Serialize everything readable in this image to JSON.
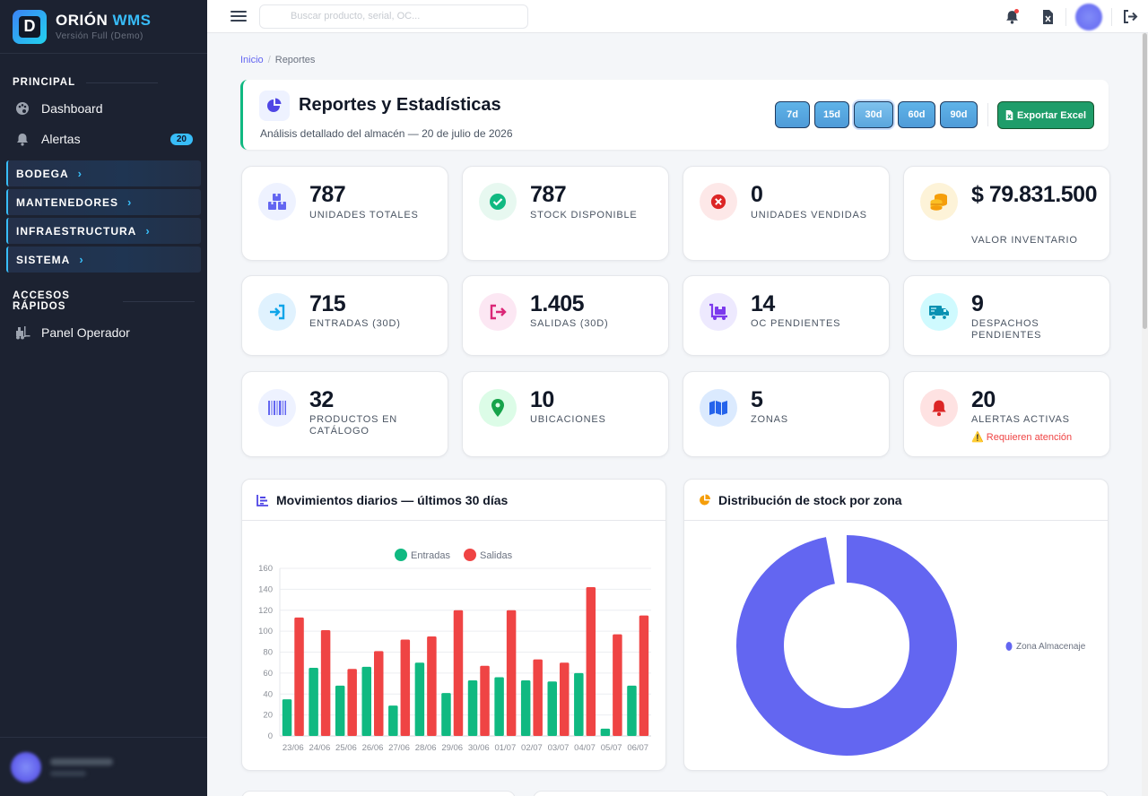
{
  "brand": {
    "letter": "D",
    "name": "ORIÓN",
    "name_accent": "WMS",
    "subtitle": "Versión Full (Demo)"
  },
  "sidebar": {
    "section_principal": "PRINCIPAL",
    "items": [
      {
        "label": "Dashboard",
        "icon": "palette-icon"
      },
      {
        "label": "Alertas",
        "icon": "bell-icon",
        "badge": "20"
      }
    ],
    "groups": [
      "BODEGA",
      "MANTENEDORES",
      "INFRAESTRUCTURA",
      "SISTEMA"
    ],
    "section_quick": "ACCESOS RÁPIDOS",
    "quick_items": [
      {
        "label": "Panel Operador",
        "icon": "forklift-icon"
      }
    ]
  },
  "topbar": {
    "search_placeholder": "Buscar producto, serial, OC..."
  },
  "breadcrumb": {
    "home": "Inicio",
    "current": "Reportes"
  },
  "header": {
    "title": "Reportes y Estadísticas",
    "subtitle": "Análisis detallado del almacén — 20 de julio de 2026",
    "ranges": [
      "7d",
      "15d",
      "30d",
      "60d",
      "90d"
    ],
    "active_range": "30d",
    "export_label": "Exportar Excel"
  },
  "kpis": [
    {
      "value": "787",
      "label": "UNIDADES TOTALES",
      "icon": "boxes-icon",
      "color": "#6366f1",
      "bg": "#eef2ff"
    },
    {
      "value": "787",
      "label": "STOCK DISPONIBLE",
      "icon": "check-circle-icon",
      "color": "#10b981",
      "bg": "#e7f8f0"
    },
    {
      "value": "0",
      "label": "UNIDADES VENDIDAS",
      "icon": "x-circle-icon",
      "color": "#dc2626",
      "bg": "#fde8e8"
    },
    {
      "value": "$ 79.831.500",
      "label": "VALOR INVENTARIO",
      "icon": "coins-icon",
      "color": "#f59e0b",
      "bg": "#fdf3d8"
    },
    {
      "value": "715",
      "label": "ENTRADAS (30D)",
      "icon": "sign-in-icon",
      "color": "#0ea5e9",
      "bg": "#e0f2fe"
    },
    {
      "value": "1.405",
      "label": "SALIDAS (30D)",
      "icon": "sign-out-icon",
      "color": "#db2777",
      "bg": "#fce7f3"
    },
    {
      "value": "14",
      "label": "OC PENDIENTES",
      "icon": "dolly-icon",
      "color": "#7c3aed",
      "bg": "#ede9fe"
    },
    {
      "value": "9",
      "label": "DESPACHOS PENDIENTES",
      "icon": "truck-icon",
      "color": "#0891b2",
      "bg": "#cffafe"
    },
    {
      "value": "32",
      "label": "PRODUCTOS EN CATÁLOGO",
      "icon": "barcode-icon",
      "color": "#6366f1",
      "bg": "#eef2ff"
    },
    {
      "value": "10",
      "label": "UBICACIONES",
      "icon": "map-pin-icon",
      "color": "#16a34a",
      "bg": "#dcfce7"
    },
    {
      "value": "5",
      "label": "ZONAS",
      "icon": "map-icon",
      "color": "#2563eb",
      "bg": "#dbeafe"
    },
    {
      "value": "20",
      "label": "ALERTAS ACTIVAS",
      "icon": "bell-icon",
      "color": "#dc2626",
      "bg": "#fee2e2",
      "warning": "⚠️ Requieren atención"
    }
  ],
  "panels": {
    "movements_title": "Movimientos diarios — últimos 30 días",
    "distribution_title": "Distribución de stock por zona"
  },
  "chart_data": [
    {
      "type": "bar",
      "categories": [
        "23/06",
        "24/06",
        "25/06",
        "26/06",
        "27/06",
        "28/06",
        "29/06",
        "30/06",
        "01/07",
        "02/07",
        "03/07",
        "04/07",
        "05/07",
        "06/07"
      ],
      "series": [
        {
          "name": "Entradas",
          "color": "#10b981",
          "values": [
            35,
            65,
            48,
            66,
            29,
            70,
            41,
            53,
            56,
            53,
            52,
            60,
            7,
            48
          ]
        },
        {
          "name": "Salidas",
          "color": "#ef4444",
          "values": [
            113,
            101,
            64,
            81,
            92,
            95,
            120,
            67,
            120,
            73,
            70,
            142,
            97,
            115
          ]
        }
      ],
      "ylim": [
        0,
        160
      ],
      "yticks": [
        0,
        20,
        40,
        60,
        80,
        100,
        120,
        140,
        160
      ],
      "grid": true,
      "legend": "top"
    },
    {
      "type": "pie",
      "labels": [
        "Zona Almacenaje"
      ],
      "values": [
        97
      ],
      "colors": [
        "#6366f1"
      ],
      "legend": "right"
    }
  ]
}
